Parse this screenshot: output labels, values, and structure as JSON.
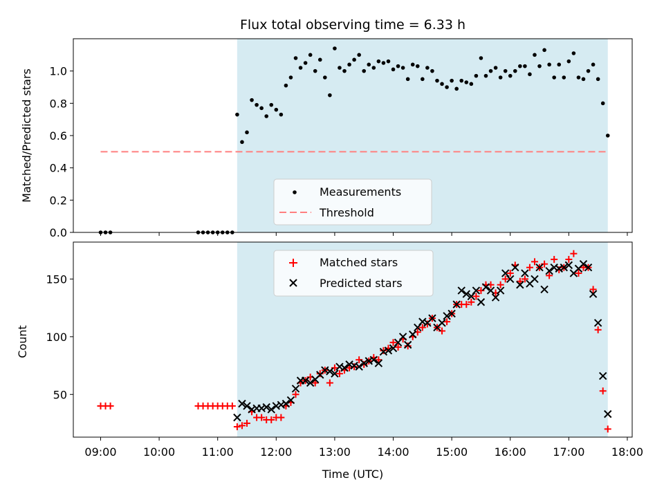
{
  "chart_data": [
    {
      "type": "scatter",
      "title": "Flux total observing time = 6.33 h",
      "xlabel": "",
      "ylabel": "Matched/Predicted stars",
      "xlim": [
        "08:32",
        "18:05"
      ],
      "ylim": [
        0,
        1.2
      ],
      "yticks": [
        0.0,
        0.2,
        0.4,
        0.6,
        0.8,
        1.0
      ],
      "ytick_labels": [
        "0.0",
        "0.2",
        "0.4",
        "0.6",
        "0.8",
        "1.0"
      ],
      "shaded_region": {
        "start": "11:20",
        "end": "17:40",
        "color": "#add8e6"
      },
      "legend": {
        "position": "bottom-center",
        "entries": [
          "Measurements",
          "Threshold"
        ]
      },
      "series": [
        {
          "name": "Measurements",
          "marker": "dot",
          "color": "#000000",
          "x": [
            "09:00",
            "09:05",
            "09:10",
            "10:40",
            "10:45",
            "10:50",
            "10:55",
            "11:00",
            "11:05",
            "11:10",
            "11:15",
            "11:20",
            "11:25",
            "11:30",
            "11:35",
            "11:40",
            "11:45",
            "11:50",
            "11:55",
            "12:00",
            "12:05",
            "12:10",
            "12:15",
            "12:20",
            "12:25",
            "12:30",
            "12:35",
            "12:40",
            "12:45",
            "12:50",
            "12:55",
            "13:00",
            "13:05",
            "13:10",
            "13:15",
            "13:20",
            "13:25",
            "13:30",
            "13:35",
            "13:40",
            "13:45",
            "13:50",
            "13:55",
            "14:00",
            "14:05",
            "14:10",
            "14:15",
            "14:20",
            "14:25",
            "14:30",
            "14:35",
            "14:40",
            "14:45",
            "14:50",
            "14:55",
            "15:00",
            "15:05",
            "15:10",
            "15:15",
            "15:20",
            "15:25",
            "15:30",
            "15:35",
            "15:40",
            "15:45",
            "15:50",
            "15:55",
            "16:00",
            "16:05",
            "16:10",
            "16:15",
            "16:20",
            "16:25",
            "16:30",
            "16:35",
            "16:40",
            "16:45",
            "16:50",
            "16:55",
            "17:00",
            "17:05",
            "17:10",
            "17:15",
            "17:20",
            "17:25",
            "17:30",
            "17:35",
            "17:40"
          ],
          "y": [
            0,
            0,
            0,
            0,
            0,
            0,
            0,
            0,
            0,
            0,
            0,
            0.73,
            0.56,
            0.62,
            0.82,
            0.79,
            0.77,
            0.72,
            0.79,
            0.76,
            0.73,
            0.91,
            0.96,
            1.08,
            1.02,
            1.05,
            1.1,
            1.0,
            1.07,
            0.96,
            0.85,
            1.14,
            1.02,
            1.0,
            1.04,
            1.07,
            1.1,
            1.0,
            1.04,
            1.02,
            1.06,
            1.05,
            1.06,
            1.01,
            1.03,
            1.02,
            0.95,
            1.04,
            1.03,
            0.95,
            1.02,
            1.0,
            0.94,
            0.92,
            0.9,
            0.94,
            0.89,
            0.94,
            0.93,
            0.92,
            0.97,
            1.08,
            0.97,
            1.0,
            1.02,
            0.96,
            1.0,
            0.97,
            1.0,
            1.03,
            1.03,
            0.98,
            1.1,
            1.03,
            1.13,
            1.04,
            0.96,
            1.04,
            0.96,
            1.06,
            1.11,
            0.96,
            0.95,
            1.0,
            1.04,
            0.95,
            0.8,
            0.6
          ]
        },
        {
          "name": "Threshold",
          "style": "dashed",
          "color": "#ff7f7f",
          "x": [
            "09:00",
            "17:40"
          ],
          "y": [
            0.5,
            0.5
          ]
        }
      ]
    },
    {
      "type": "scatter",
      "title": "",
      "xlabel": "Time (UTC)",
      "ylabel": "Count",
      "xlim": [
        "08:32",
        "18:05"
      ],
      "ylim": [
        13,
        182
      ],
      "xticks": [
        "09:00",
        "10:00",
        "11:00",
        "12:00",
        "13:00",
        "14:00",
        "15:00",
        "16:00",
        "17:00",
        "18:00"
      ],
      "yticks": [
        50,
        100,
        150
      ],
      "ytick_labels": [
        "50",
        "100",
        "150"
      ],
      "shaded_region": {
        "start": "11:20",
        "end": "17:40",
        "color": "#add8e6"
      },
      "legend": {
        "position": "top-center",
        "entries": [
          "Matched stars",
          "Predicted stars"
        ]
      },
      "series": [
        {
          "name": "Matched stars",
          "marker": "plus",
          "color": "#ff0000",
          "x": [
            "09:00",
            "09:05",
            "09:10",
            "10:40",
            "10:45",
            "10:50",
            "10:55",
            "11:00",
            "11:05",
            "11:10",
            "11:15",
            "11:20",
            "11:25",
            "11:30",
            "11:35",
            "11:40",
            "11:45",
            "11:50",
            "11:55",
            "12:00",
            "12:05",
            "12:10",
            "12:15",
            "12:20",
            "12:25",
            "12:30",
            "12:35",
            "12:40",
            "12:45",
            "12:50",
            "12:55",
            "13:00",
            "13:05",
            "13:10",
            "13:15",
            "13:20",
            "13:25",
            "13:30",
            "13:35",
            "13:40",
            "13:45",
            "13:50",
            "13:55",
            "14:00",
            "14:05",
            "14:10",
            "14:15",
            "14:20",
            "14:25",
            "14:30",
            "14:35",
            "14:40",
            "14:45",
            "14:50",
            "14:55",
            "15:00",
            "15:05",
            "15:10",
            "15:15",
            "15:20",
            "15:25",
            "15:30",
            "15:35",
            "15:40",
            "15:45",
            "15:50",
            "15:55",
            "16:00",
            "16:05",
            "16:10",
            "16:15",
            "16:20",
            "16:25",
            "16:30",
            "16:35",
            "16:40",
            "16:45",
            "16:50",
            "16:55",
            "17:00",
            "17:05",
            "17:10",
            "17:15",
            "17:20",
            "17:25",
            "17:30",
            "17:35",
            "17:40"
          ],
          "y": [
            40,
            40,
            40,
            40,
            40,
            40,
            40,
            40,
            40,
            40,
            40,
            22,
            23,
            25,
            35,
            30,
            30,
            28,
            28,
            30,
            30,
            40,
            43,
            50,
            60,
            62,
            65,
            60,
            68,
            71,
            60,
            73,
            68,
            71,
            73,
            74,
            80,
            76,
            79,
            82,
            80,
            88,
            90,
            95,
            91,
            98,
            92,
            100,
            104,
            108,
            111,
            116,
            108,
            105,
            113,
            120,
            128,
            128,
            128,
            130,
            135,
            140,
            145,
            145,
            138,
            145,
            150,
            155,
            162,
            148,
            150,
            160,
            165,
            160,
            163,
            153,
            167,
            158,
            160,
            167,
            172,
            155,
            160,
            160,
            141,
            106,
            53,
            20
          ]
        },
        {
          "name": "Predicted stars",
          "marker": "x",
          "color": "#000000",
          "x": [
            "11:20",
            "11:25",
            "11:30",
            "11:35",
            "11:40",
            "11:45",
            "11:50",
            "11:55",
            "12:00",
            "12:05",
            "12:10",
            "12:15",
            "12:20",
            "12:25",
            "12:30",
            "12:35",
            "12:40",
            "12:45",
            "12:50",
            "12:55",
            "13:00",
            "13:05",
            "13:10",
            "13:15",
            "13:20",
            "13:25",
            "13:30",
            "13:35",
            "13:40",
            "13:45",
            "13:50",
            "13:55",
            "14:00",
            "14:05",
            "14:10",
            "14:15",
            "14:20",
            "14:25",
            "14:30",
            "14:35",
            "14:40",
            "14:45",
            "14:50",
            "14:55",
            "15:00",
            "15:05",
            "15:10",
            "15:15",
            "15:20",
            "15:25",
            "15:30",
            "15:35",
            "15:40",
            "15:45",
            "15:50",
            "15:55",
            "16:00",
            "16:05",
            "16:10",
            "16:15",
            "16:20",
            "16:25",
            "16:30",
            "16:35",
            "16:40",
            "16:45",
            "16:50",
            "16:55",
            "17:00",
            "17:05",
            "17:10",
            "17:15",
            "17:20",
            "17:25",
            "17:30",
            "17:35",
            "17:40"
          ],
          "y": [
            30,
            42,
            40,
            37,
            38,
            38,
            39,
            37,
            40,
            41,
            42,
            45,
            55,
            62,
            62,
            60,
            63,
            67,
            71,
            70,
            68,
            74,
            73,
            76,
            75,
            74,
            77,
            79,
            80,
            77,
            87,
            88,
            90,
            95,
            100,
            93,
            102,
            108,
            113,
            112,
            116,
            108,
            112,
            118,
            120,
            128,
            140,
            137,
            135,
            140,
            130,
            143,
            140,
            134,
            140,
            155,
            150,
            160,
            145,
            155,
            146,
            150,
            160,
            141,
            157,
            160,
            159,
            160,
            162,
            155,
            159,
            163,
            160,
            137,
            112,
            66,
            33
          ]
        }
      ]
    }
  ]
}
